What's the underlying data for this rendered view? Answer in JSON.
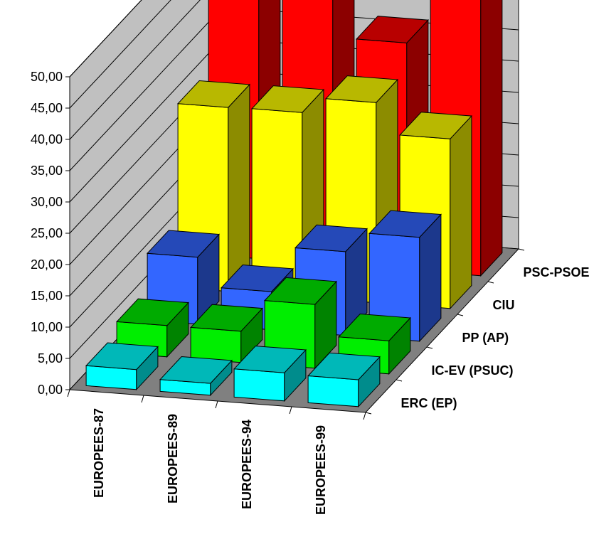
{
  "chart_data": {
    "type": "bar",
    "categories": [
      "EUROPEES-87",
      "EUROPEES-89",
      "EUROPEES-94",
      "EUROPEES-99"
    ],
    "series": [
      {
        "name": "ERC (EP)",
        "values": [
          3.2,
          1.9,
          4.5,
          4.3
        ],
        "color": "#00FFFF"
      },
      {
        "name": "IC-EV (PSUC)",
        "values": [
          5.0,
          5.0,
          10.2,
          5.3
        ],
        "color": "#00EE00"
      },
      {
        "name": "PP (AP)",
        "values": [
          10.7,
          6.1,
          13.4,
          16.6
        ],
        "color": "#3366FF"
      },
      {
        "name": "CIU",
        "values": [
          29.4,
          29.5,
          32.0,
          27.1
        ],
        "color": "#FFFF00"
      },
      {
        "name": "PSC-PSOE",
        "values": [
          45.0,
          45.3,
          36.3,
          45.5
        ],
        "color": "#FF0000"
      }
    ],
    "ylim": [
      0,
      50
    ],
    "ytick_labels": [
      "0,00",
      "5,00",
      "10,00",
      "15,00",
      "20,00",
      "25,00",
      "30,00",
      "35,00",
      "40,00",
      "45,00",
      "50,00"
    ],
    "title": "",
    "xlabel": "",
    "ylabel": "",
    "grid": true,
    "legend": "none",
    "three_d": true,
    "wall_color": "#C0C0C0",
    "floor_color": "#808080"
  }
}
